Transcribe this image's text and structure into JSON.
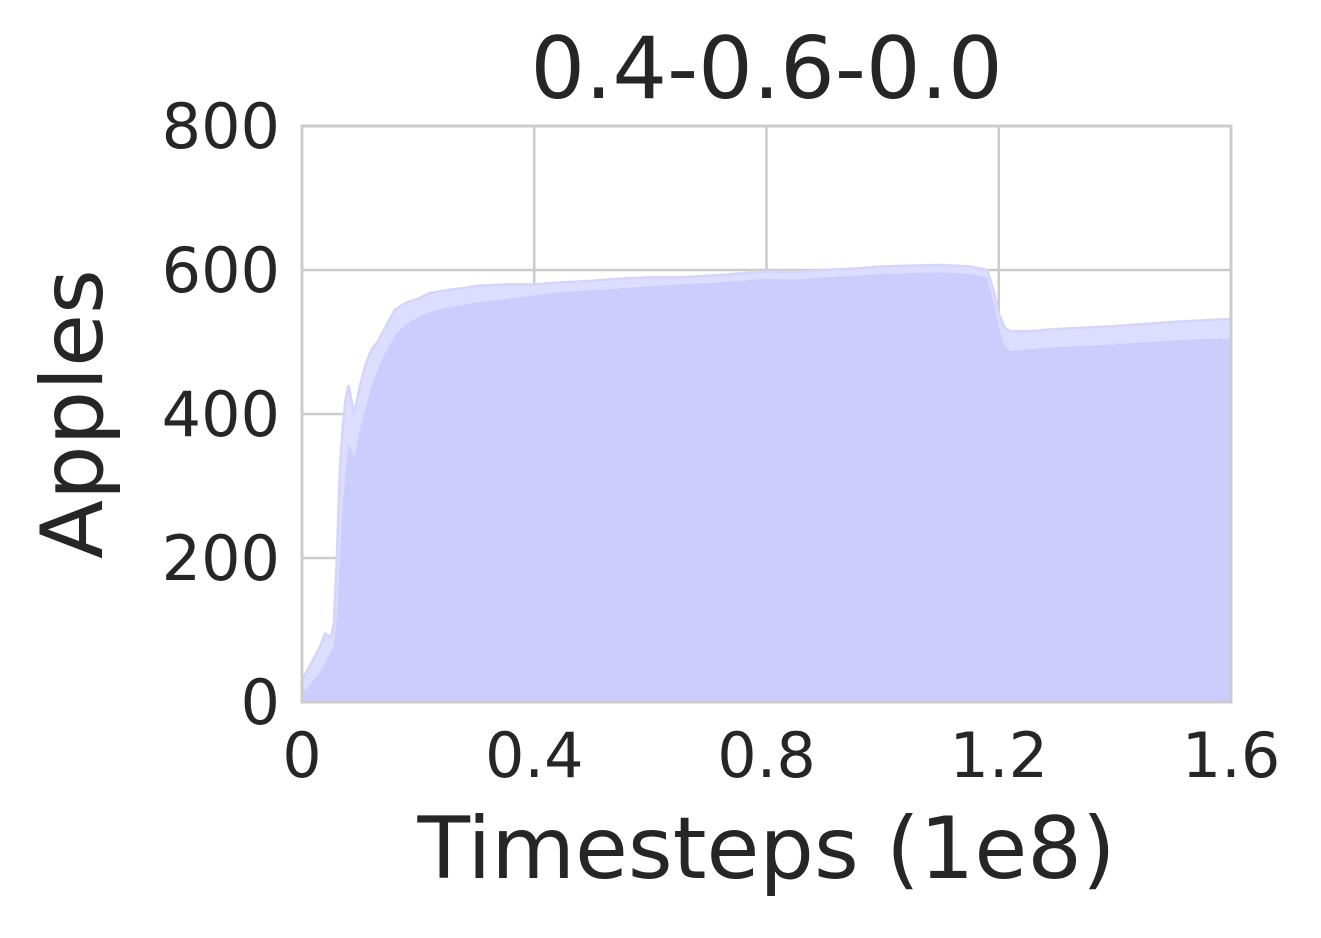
{
  "chart_data": {
    "type": "area",
    "title": "0.4-0.6-0.0",
    "xlabel": "Timesteps (1e8)",
    "ylabel": "Apples",
    "xlim": [
      0,
      1.6
    ],
    "ylim": [
      0,
      800
    ],
    "x_ticks": [
      0,
      0.4,
      0.8,
      1.2,
      1.6
    ],
    "x_tick_labels": [
      "0",
      "0.4",
      "0.8",
      "1.2",
      "1.6"
    ],
    "y_ticks": [
      0,
      200,
      400,
      600,
      800
    ],
    "y_tick_labels": [
      "0",
      "200",
      "400",
      "600",
      "800"
    ],
    "grid": true,
    "fill_color": "#ccccff",
    "band_color": "#ddddff",
    "series": [
      {
        "x": [
          0,
          0.01,
          0.02,
          0.03,
          0.04,
          0.05,
          0.055,
          0.06,
          0.065,
          0.07,
          0.075,
          0.08,
          0.09,
          0.1,
          0.11,
          0.12,
          0.13,
          0.14,
          0.15,
          0.16,
          0.18,
          0.2,
          0.22,
          0.25,
          0.28,
          0.3,
          0.35,
          0.4,
          0.45,
          0.5,
          0.55,
          0.6,
          0.65,
          0.7,
          0.75,
          0.8,
          0.85,
          0.9,
          0.95,
          1.0,
          1.05,
          1.1,
          1.15,
          1.18,
          1.19,
          1.2,
          1.21,
          1.22,
          1.25,
          1.3,
          1.35,
          1.4,
          1.45,
          1.5,
          1.55,
          1.6
        ],
        "upper": [
          30,
          45,
          60,
          75,
          95,
          90,
          110,
          200,
          320,
          380,
          420,
          440,
          400,
          440,
          470,
          490,
          500,
          515,
          530,
          545,
          555,
          560,
          568,
          572,
          575,
          578,
          580,
          580,
          583,
          585,
          588,
          590,
          590,
          592,
          595,
          598,
          597,
          600,
          602,
          605,
          606,
          607,
          605,
          600,
          575,
          540,
          520,
          515,
          515,
          518,
          520,
          522,
          525,
          528,
          530,
          532
        ],
        "lower": [
          15,
          20,
          30,
          40,
          55,
          70,
          80,
          120,
          200,
          280,
          320,
          360,
          340,
          380,
          410,
          440,
          460,
          480,
          495,
          510,
          525,
          535,
          542,
          548,
          552,
          555,
          560,
          565,
          570,
          572,
          575,
          578,
          580,
          582,
          585,
          588,
          587,
          590,
          592,
          595,
          596,
          597,
          595,
          590,
          560,
          520,
          495,
          488,
          490,
          493,
          495,
          497,
          500,
          502,
          504,
          505
        ]
      }
    ]
  }
}
